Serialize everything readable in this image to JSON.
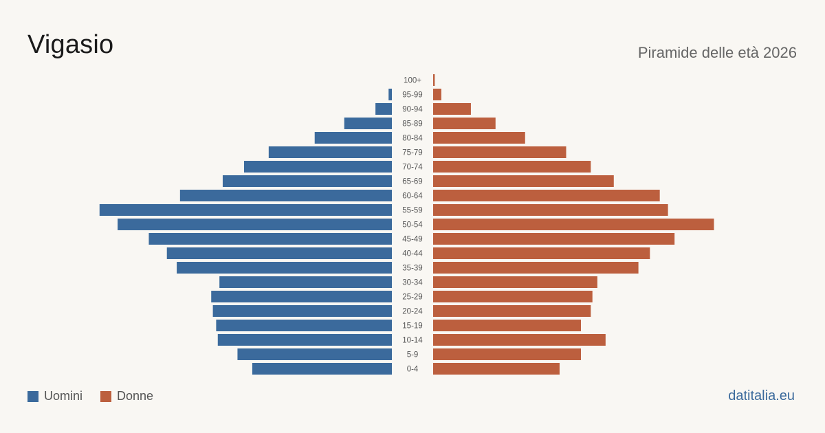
{
  "header": {
    "title": "Vigasio",
    "subtitle": "Piramide delle età 2026"
  },
  "legend": {
    "items": [
      {
        "label": "Uomini",
        "color": "#3b6a9c"
      },
      {
        "label": "Donne",
        "color": "#bc5f3e"
      }
    ]
  },
  "footer": {
    "brand": "datitalia.eu"
  },
  "colors": {
    "men": "#3b6a9c",
    "women": "#bc5f3e",
    "background": "#f9f7f3",
    "label": "#555555"
  },
  "chart_data": {
    "type": "bar",
    "orientation": "horizontal-pyramid",
    "categories": [
      "100+",
      "95-99",
      "90-94",
      "85-89",
      "80-84",
      "75-79",
      "70-74",
      "65-69",
      "60-64",
      "55-59",
      "50-54",
      "45-49",
      "40-44",
      "35-39",
      "30-34",
      "25-29",
      "20-24",
      "15-19",
      "10-14",
      "5-9",
      "0-4"
    ],
    "series": [
      {
        "name": "Uomini",
        "color": "#3b6a9c",
        "values": [
          0,
          2,
          10,
          29,
          47,
          75,
          90,
          103,
          129,
          178,
          167,
          148,
          137,
          131,
          105,
          110,
          109,
          107,
          106,
          94,
          85
        ]
      },
      {
        "name": "Donne",
        "color": "#bc5f3e",
        "values": [
          1,
          5,
          23,
          38,
          56,
          81,
          96,
          110,
          138,
          143,
          171,
          147,
          132,
          125,
          100,
          97,
          96,
          90,
          105,
          90,
          77
        ]
      }
    ],
    "xlabel": "",
    "ylabel": "",
    "grid": false,
    "legend_position": "bottom-left"
  }
}
